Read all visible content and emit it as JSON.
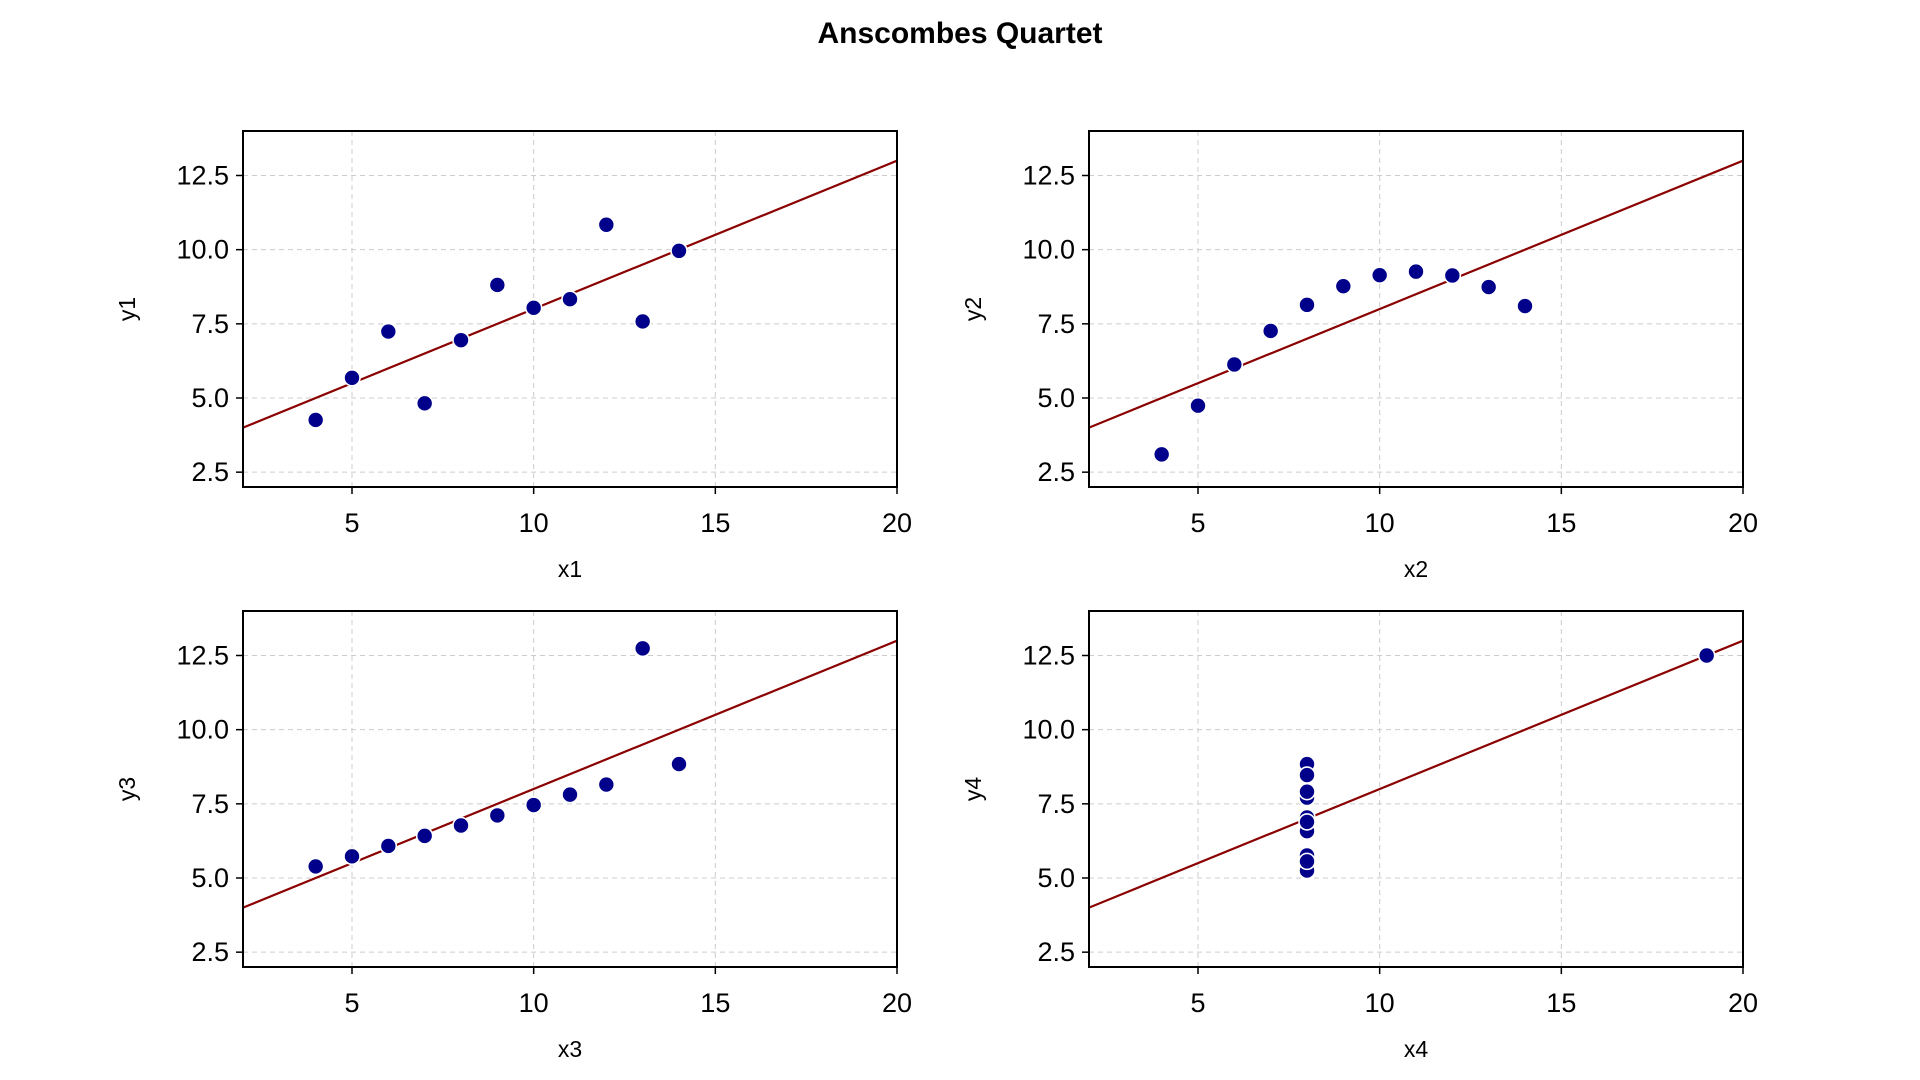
{
  "title": "Anscombes Quartet",
  "colors": {
    "points": "#00008b",
    "point_edge": "#ffffff",
    "fit_line": "#8b0000",
    "grid": "#cccccc",
    "axes": "#000000"
  },
  "chart_data": [
    {
      "type": "scatter",
      "title": "",
      "xlabel": "x1",
      "ylabel": "y1",
      "xlim": [
        2,
        20
      ],
      "ylim": [
        2,
        14
      ],
      "xticks": [
        "5",
        "10",
        "15",
        "20"
      ],
      "yticks": [
        "2.5",
        "5.0",
        "7.5",
        "10.0",
        "12.5"
      ],
      "grid": true,
      "points": [
        {
          "x": 10,
          "y": 8.04
        },
        {
          "x": 8,
          "y": 6.95
        },
        {
          "x": 13,
          "y": 7.58
        },
        {
          "x": 9,
          "y": 8.81
        },
        {
          "x": 11,
          "y": 8.33
        },
        {
          "x": 14,
          "y": 9.96
        },
        {
          "x": 6,
          "y": 7.24
        },
        {
          "x": 4,
          "y": 4.26
        },
        {
          "x": 12,
          "y": 10.84
        },
        {
          "x": 7,
          "y": 4.82
        },
        {
          "x": 5,
          "y": 5.68
        }
      ],
      "fit_line": {
        "slope": 0.5,
        "intercept": 3.0
      }
    },
    {
      "type": "scatter",
      "title": "",
      "xlabel": "x2",
      "ylabel": "y2",
      "xlim": [
        2,
        20
      ],
      "ylim": [
        2,
        14
      ],
      "xticks": [
        "5",
        "10",
        "15",
        "20"
      ],
      "yticks": [
        "2.5",
        "5.0",
        "7.5",
        "10.0",
        "12.5"
      ],
      "grid": true,
      "points": [
        {
          "x": 10,
          "y": 9.14
        },
        {
          "x": 8,
          "y": 8.14
        },
        {
          "x": 13,
          "y": 8.74
        },
        {
          "x": 9,
          "y": 8.77
        },
        {
          "x": 11,
          "y": 9.26
        },
        {
          "x": 14,
          "y": 8.1
        },
        {
          "x": 6,
          "y": 6.13
        },
        {
          "x": 4,
          "y": 3.1
        },
        {
          "x": 12,
          "y": 9.13
        },
        {
          "x": 7,
          "y": 7.26
        },
        {
          "x": 5,
          "y": 4.74
        }
      ],
      "fit_line": {
        "slope": 0.5,
        "intercept": 3.0
      }
    },
    {
      "type": "scatter",
      "title": "",
      "xlabel": "x3",
      "ylabel": "y3",
      "xlim": [
        2,
        20
      ],
      "ylim": [
        2,
        14
      ],
      "xticks": [
        "5",
        "10",
        "15",
        "20"
      ],
      "yticks": [
        "2.5",
        "5.0",
        "7.5",
        "10.0",
        "12.5"
      ],
      "grid": true,
      "points": [
        {
          "x": 10,
          "y": 7.46
        },
        {
          "x": 8,
          "y": 6.77
        },
        {
          "x": 13,
          "y": 12.74
        },
        {
          "x": 9,
          "y": 7.11
        },
        {
          "x": 11,
          "y": 7.81
        },
        {
          "x": 14,
          "y": 8.84
        },
        {
          "x": 6,
          "y": 6.08
        },
        {
          "x": 4,
          "y": 5.39
        },
        {
          "x": 12,
          "y": 8.15
        },
        {
          "x": 7,
          "y": 6.42
        },
        {
          "x": 5,
          "y": 5.73
        }
      ],
      "fit_line": {
        "slope": 0.5,
        "intercept": 3.0
      }
    },
    {
      "type": "scatter",
      "title": "",
      "xlabel": "x4",
      "ylabel": "y4",
      "xlim": [
        2,
        20
      ],
      "ylim": [
        2,
        14
      ],
      "xticks": [
        "5",
        "10",
        "15",
        "20"
      ],
      "yticks": [
        "2.5",
        "5.0",
        "7.5",
        "10.0",
        "12.5"
      ],
      "grid": true,
      "points": [
        {
          "x": 8,
          "y": 6.58
        },
        {
          "x": 8,
          "y": 5.76
        },
        {
          "x": 8,
          "y": 7.71
        },
        {
          "x": 8,
          "y": 8.84
        },
        {
          "x": 8,
          "y": 8.47
        },
        {
          "x": 8,
          "y": 7.04
        },
        {
          "x": 8,
          "y": 5.25
        },
        {
          "x": 19,
          "y": 12.5
        },
        {
          "x": 8,
          "y": 5.56
        },
        {
          "x": 8,
          "y": 7.91
        },
        {
          "x": 8,
          "y": 6.89
        }
      ],
      "fit_line": {
        "slope": 0.5,
        "intercept": 3.0
      }
    }
  ]
}
